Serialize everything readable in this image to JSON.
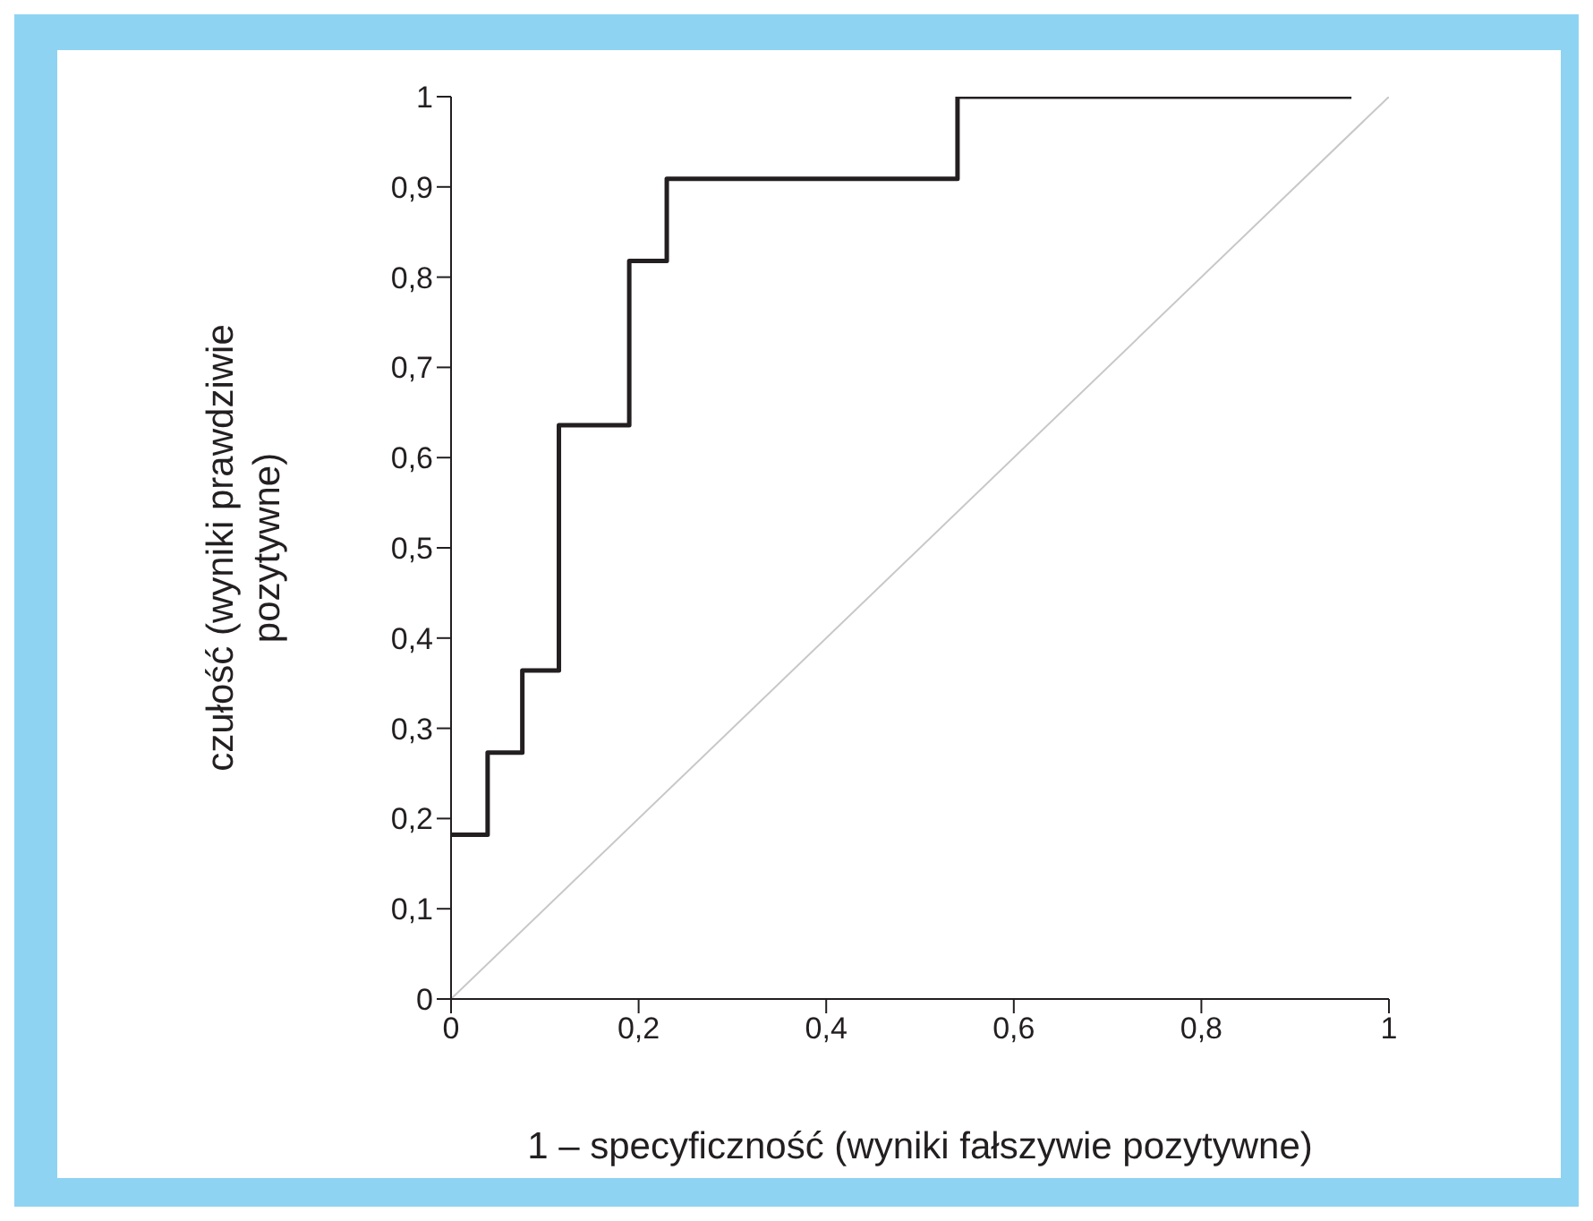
{
  "chart_data": {
    "type": "step",
    "xlabel": "1 – specyficzność (wyniki fałszywie pozytywne)",
    "ylabel": "czułość (wyniki prawdziwie pozytywne)",
    "series": [
      {
        "color": "#231f20",
        "x": [
          0,
          0.039,
          0.076,
          0.115,
          0.19,
          0.23,
          0.54,
          0.96
        ],
        "values": [
          0.182,
          0.273,
          0.364,
          0.636,
          0.818,
          0.909,
          1,
          1
        ]
      },
      {
        "type": "line",
        "color": "#c8c8c8",
        "x": [
          0,
          1
        ],
        "values": [
          0,
          1
        ]
      }
    ],
    "xlim": [
      0,
      1
    ],
    "ylim": [
      0,
      1
    ],
    "xticks": [
      0,
      {
        "value": 0.2,
        "label": "0,2"
      },
      {
        "value": 0.4,
        "label": "0,4"
      },
      {
        "value": 0.6,
        "label": "0,6"
      },
      {
        "value": 0.8,
        "label": "0,8"
      },
      1
    ],
    "yticks": [
      0,
      {
        "value": 0.1,
        "label": "0,1"
      },
      {
        "value": 0.2,
        "label": "0,2"
      },
      {
        "value": 0.3,
        "label": "0,3"
      },
      {
        "value": 0.4,
        "label": "0,4"
      },
      {
        "value": 0.5,
        "label": "0,5"
      },
      {
        "value": 0.6,
        "label": "0,6"
      },
      {
        "value": 0.7,
        "label": "0,7"
      },
      {
        "value": 0.8,
        "label": "0,8"
      },
      {
        "value": 0.9,
        "label": "0,9"
      },
      1
    ],
    "grid": false,
    "legend": false,
    "marker": "none",
    "line_style": "solid"
  }
}
